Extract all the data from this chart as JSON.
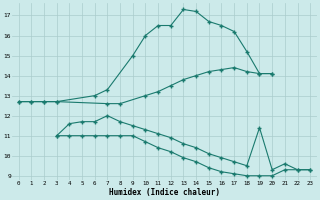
{
  "xlabel": "Humidex (Indice chaleur)",
  "background_color": "#cceaea",
  "grid_color": "#aacccc",
  "line_color": "#1a7a6e",
  "xlim": [
    -0.5,
    23.5
  ],
  "ylim": [
    8.8,
    17.6
  ],
  "yticks": [
    9,
    10,
    11,
    12,
    13,
    14,
    15,
    16,
    17
  ],
  "xticks": [
    0,
    1,
    2,
    3,
    4,
    5,
    6,
    7,
    8,
    9,
    10,
    11,
    12,
    13,
    14,
    15,
    16,
    17,
    18,
    19,
    20,
    21,
    22,
    23
  ],
  "curve1_x": [
    0,
    1,
    2,
    3,
    6,
    7,
    9,
    10,
    11,
    12,
    13,
    14,
    15,
    16,
    17,
    18,
    19,
    20
  ],
  "curve1_y": [
    12.7,
    12.7,
    12.7,
    12.7,
    13.0,
    13.3,
    15.0,
    16.0,
    16.5,
    16.5,
    17.3,
    17.2,
    16.7,
    16.5,
    16.2,
    15.2,
    14.1,
    14.1
  ],
  "curve2_x": [
    0,
    1,
    2,
    3,
    7,
    8,
    10,
    11,
    12,
    13,
    14,
    15,
    16,
    17,
    18,
    19,
    20
  ],
  "curve2_y": [
    12.7,
    12.7,
    12.7,
    12.7,
    12.6,
    12.6,
    13.0,
    13.2,
    13.5,
    13.8,
    14.0,
    14.2,
    14.3,
    14.4,
    14.2,
    14.1,
    14.1
  ],
  "curve3_x": [
    3,
    4,
    5,
    6,
    7,
    8,
    9,
    10,
    11,
    12,
    13,
    14,
    15,
    16,
    17,
    18,
    19,
    20,
    21,
    22,
    23
  ],
  "curve3_y": [
    11.0,
    11.6,
    11.7,
    11.7,
    12.0,
    11.7,
    11.5,
    11.3,
    11.1,
    10.9,
    10.6,
    10.4,
    10.1,
    9.9,
    9.7,
    9.5,
    11.4,
    9.3,
    9.6,
    9.3,
    9.3
  ],
  "curve4_x": [
    3,
    4,
    5,
    6,
    7,
    8,
    9,
    10,
    11,
    12,
    13,
    14,
    15,
    16,
    17,
    18,
    19,
    20,
    21,
    22,
    23
  ],
  "curve4_y": [
    11.0,
    11.0,
    11.0,
    11.0,
    11.0,
    11.0,
    11.0,
    10.7,
    10.4,
    10.2,
    9.9,
    9.7,
    9.4,
    9.2,
    9.1,
    9.0,
    9.0,
    9.0,
    9.3,
    9.3,
    9.3
  ]
}
